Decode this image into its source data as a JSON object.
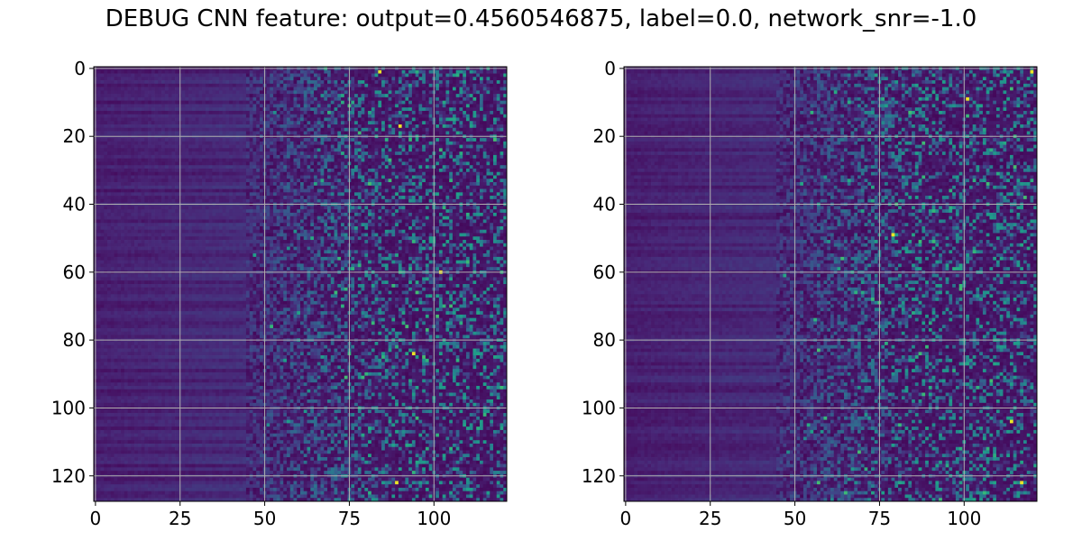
{
  "figure": {
    "title": "DEBUG CNN feature: output=0.4560546875, label=0.0, network_snr=-1.0"
  },
  "colormap": {
    "name": "viridis",
    "stops": [
      "#440154",
      "#482878",
      "#3e4989",
      "#31688e",
      "#26828e",
      "#1f9e89",
      "#35b779",
      "#6ece58",
      "#b5de2b",
      "#fde725"
    ]
  },
  "chart_data": [
    {
      "type": "heatmap",
      "title": "",
      "xlabel": "",
      "ylabel": "",
      "rows": 128,
      "cols": 122,
      "x_range": [
        -0.5,
        121.5
      ],
      "y_range": [
        127.5,
        -0.5
      ],
      "y_inverted": true,
      "xticks": [
        0,
        25,
        50,
        75,
        100
      ],
      "yticks": [
        0,
        20,
        40,
        60,
        80,
        100,
        120
      ],
      "grid": true,
      "grid_color": "#b0b0b0",
      "pattern": "low values (dark purple) for columns 0-50 with horizontal banding; sparse speckled high values increasing toward columns 75-121",
      "bright_pixels": [
        [
          1,
          84
        ],
        [
          60,
          102
        ],
        [
          17,
          90
        ],
        [
          84,
          94
        ],
        [
          122,
          89
        ]
      ]
    },
    {
      "type": "heatmap",
      "title": "",
      "xlabel": "",
      "ylabel": "",
      "rows": 128,
      "cols": 122,
      "x_range": [
        -0.5,
        121.5
      ],
      "y_range": [
        127.5,
        -0.5
      ],
      "y_inverted": true,
      "xticks": [
        0,
        25,
        50,
        75,
        100
      ],
      "yticks": [
        0,
        20,
        40,
        60,
        80,
        100,
        120
      ],
      "grid": true,
      "grid_color": "#b0b0b0",
      "pattern": "low values (dark purple) for columns 0-50 with horizontal banding; sparse speckled high values increasing toward columns 75-121",
      "bright_pixels": [
        [
          9,
          101
        ],
        [
          1,
          120
        ],
        [
          49,
          79
        ],
        [
          104,
          114
        ],
        [
          122,
          117
        ]
      ]
    }
  ]
}
